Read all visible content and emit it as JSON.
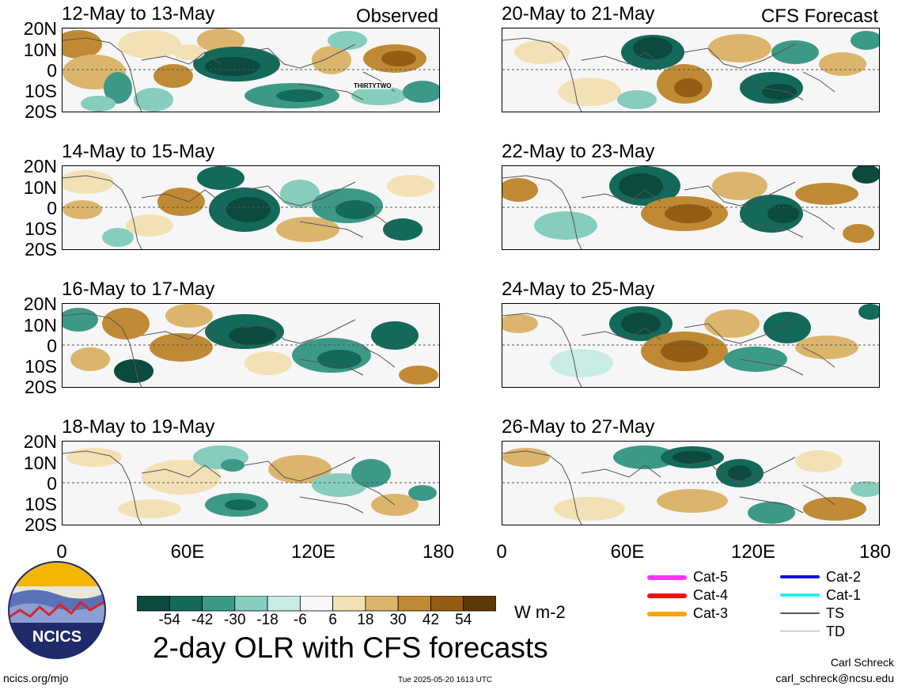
{
  "panels": [
    {
      "title": "12-May to 13-May",
      "tag": "Observed",
      "storm_label": "THIRTYTWO"
    },
    {
      "title": "14-May to 15-May",
      "tag": ""
    },
    {
      "title": "16-May to 17-May",
      "tag": ""
    },
    {
      "title": "18-May to 19-May",
      "tag": ""
    },
    {
      "title": "20-May to 21-May",
      "tag": "CFS Forecast"
    },
    {
      "title": "22-May to 23-May",
      "tag": ""
    },
    {
      "title": "24-May to 25-May",
      "tag": ""
    },
    {
      "title": "26-May to 27-May",
      "tag": ""
    }
  ],
  "lat_labels": [
    "20N",
    "10N",
    "0",
    "10S",
    "20S"
  ],
  "lon_labels": [
    "0",
    "60E",
    "120E",
    "180"
  ],
  "colorbar": {
    "labels": [
      "-54",
      "-42",
      "-30",
      "-18",
      "-6",
      "6",
      "18",
      "30",
      "42",
      "54"
    ],
    "colors": [
      "#0b4a3c",
      "#13695a",
      "#3c9988",
      "#86cdbd",
      "#c9ece4",
      "#f7f7f7",
      "#f3e1b6",
      "#dcb56d",
      "#c08a35",
      "#955c14",
      "#5e3908"
    ],
    "units": "W m-2"
  },
  "legend": [
    {
      "label": "Cat-5",
      "color": "#ff33ff"
    },
    {
      "label": "Cat-4",
      "color": "#ee1111"
    },
    {
      "label": "Cat-3",
      "color": "#ffa500"
    },
    {
      "label": "Cat-2",
      "color": "#1010dd"
    },
    {
      "label": "Cat-1",
      "color": "#22eeee"
    },
    {
      "label": "TS",
      "color": "#555555"
    },
    {
      "label": "TD",
      "color": "#aaaaaa"
    }
  ],
  "logo_text": "NCICS",
  "main_title": "2-day OLR with CFS forecasts",
  "footer": {
    "url": "ncics.org/mjo",
    "timestamp": "Tue 2025-05-20 1613 UTC",
    "author": "Carl Schreck",
    "email": "carl_schreck@ncsu.edu"
  }
}
